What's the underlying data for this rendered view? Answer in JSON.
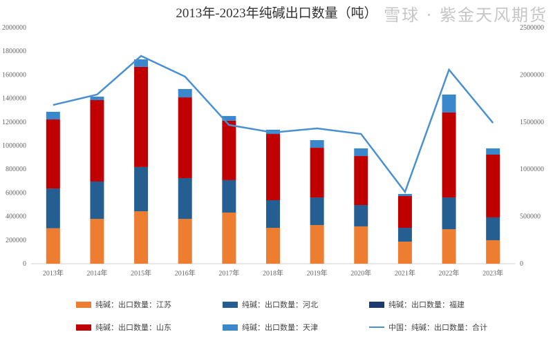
{
  "chart_data": {
    "type": "bar",
    "stacked": true,
    "title": "2013年-2023年纯碱出口数量（吨）",
    "categories": [
      "2013年",
      "2014年",
      "2015年",
      "2016年",
      "2017年",
      "2018年",
      "2019年",
      "2020年",
      "2021年",
      "2022年",
      "2023年"
    ],
    "ylim_left": [
      0,
      2000000
    ],
    "yticks_left": [
      "0",
      "200000",
      "400000",
      "600000",
      "800000",
      "1000000",
      "1200000",
      "1400000",
      "1600000",
      "1800000",
      "2000000"
    ],
    "ylim_right": [
      0,
      2500000
    ],
    "yticks_right": [
      "0",
      "500000",
      "1000000",
      "1500000",
      "2000000",
      "2500000"
    ],
    "grid": false,
    "legend_position": "bottom",
    "series": [
      {
        "name": "纯碱：出口数量：江苏",
        "color": "#ed7d31",
        "axis": "left",
        "values": [
          300000,
          380000,
          444000,
          380000,
          433000,
          304000,
          327000,
          316000,
          187000,
          292000,
          199000
        ]
      },
      {
        "name": "纯碱：出口数量：河北",
        "color": "#255e91",
        "axis": "left",
        "values": [
          337000,
          316000,
          375000,
          345000,
          275000,
          234000,
          234000,
          181000,
          117000,
          269000,
          193000
        ]
      },
      {
        "name": "纯碱：出口数量：福建",
        "color": "#1f3a6e",
        "axis": "left",
        "values": [
          0,
          0,
          0,
          0,
          0,
          0,
          0,
          0,
          0,
          0,
          0
        ]
      },
      {
        "name": "纯碱：出口数量：山东",
        "color": "#c00000",
        "axis": "left",
        "values": [
          585000,
          690000,
          848000,
          684000,
          503000,
          561000,
          421000,
          415000,
          269000,
          720000,
          532000
        ]
      },
      {
        "name": "纯碱：出口数量：天津",
        "color": "#3a87cc",
        "axis": "left",
        "values": [
          65000,
          29000,
          64000,
          71000,
          40000,
          36000,
          65000,
          65000,
          18000,
          152000,
          53000
        ]
      },
      {
        "name": "中国：纯碱：出口数量：合计",
        "color": "#4a90d0",
        "type": "line",
        "axis": "right",
        "values": [
          1681000,
          1791000,
          2200000,
          1981000,
          1469000,
          1389000,
          1433000,
          1374000,
          760000,
          2054000,
          1491000
        ]
      }
    ]
  },
  "watermark": "雪球 · 紫金天风期货"
}
